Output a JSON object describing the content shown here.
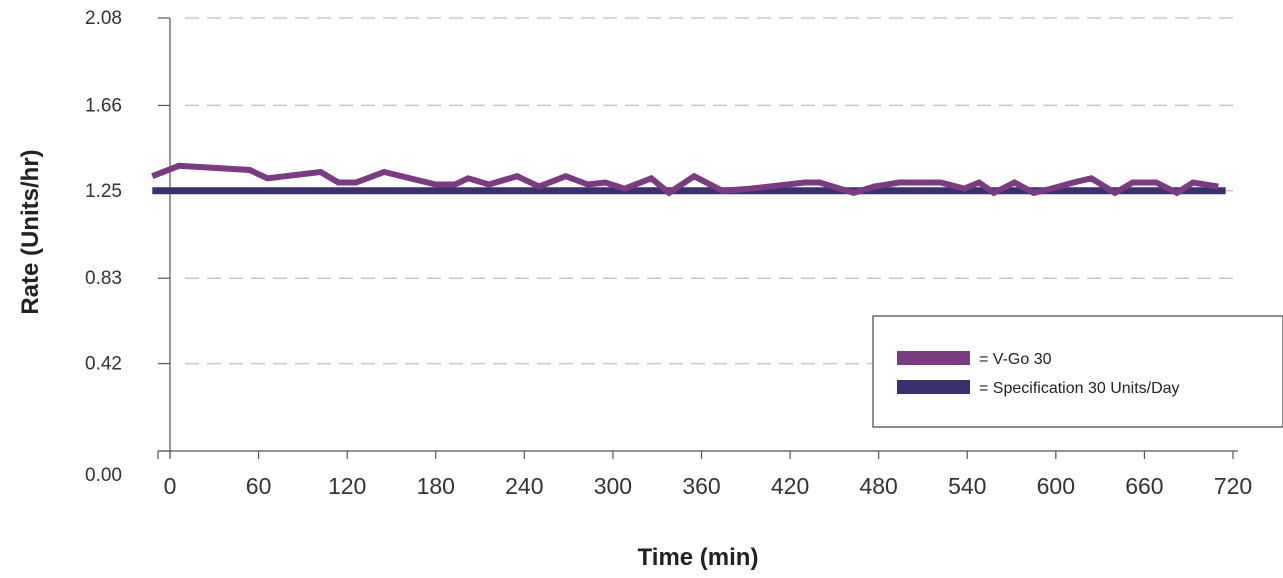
{
  "chart_data": {
    "type": "line",
    "title": "",
    "xlabel": "Time (min)",
    "ylabel": "Rate (Units/hr)",
    "xlim": [
      0,
      720
    ],
    "ylim": [
      0,
      2.08
    ],
    "x_ticks": [
      0,
      60,
      120,
      180,
      240,
      300,
      360,
      420,
      480,
      540,
      600,
      660,
      720
    ],
    "x_tick_labels": [
      "0",
      "60",
      "120",
      "180",
      "240",
      "300",
      "360",
      "420",
      "480",
      "540",
      "600",
      "660",
      "720"
    ],
    "y_ticks": [
      0,
      0.42,
      0.83,
      1.25,
      1.66,
      2.08
    ],
    "y_tick_labels": [
      "0.00",
      "0.42",
      "0.83",
      "1.25",
      "1.66",
      "2.08"
    ],
    "grid": "horizontal dashed",
    "legend_position": "bottom-right",
    "series": [
      {
        "name": "= V-Go 30",
        "color": "#7a3b82",
        "x": [
          -12,
          6,
          54,
          66,
          102,
          114,
          126,
          145,
          180,
          193,
          202,
          216,
          235,
          250,
          268,
          283,
          295,
          308,
          326,
          338,
          355,
          374,
          393,
          430,
          440,
          463,
          477,
          494,
          508,
          522,
          538,
          548,
          558,
          572,
          585,
          597,
          612,
          624,
          640,
          652,
          668,
          682,
          693,
          710
        ],
        "y": [
          1.32,
          1.37,
          1.35,
          1.31,
          1.34,
          1.29,
          1.29,
          1.34,
          1.28,
          1.28,
          1.31,
          1.28,
          1.32,
          1.27,
          1.32,
          1.28,
          1.29,
          1.26,
          1.31,
          1.24,
          1.32,
          1.25,
          1.26,
          1.29,
          1.29,
          1.24,
          1.27,
          1.29,
          1.29,
          1.29,
          1.26,
          1.29,
          1.24,
          1.29,
          1.24,
          1.26,
          1.29,
          1.31,
          1.24,
          1.29,
          1.29,
          1.24,
          1.29,
          1.27
        ]
      },
      {
        "name": "= Specification 30 Units/Day",
        "color": "#3c2f6e",
        "x": [
          -12,
          715
        ],
        "y": [
          1.25,
          1.25
        ]
      }
    ]
  },
  "colors": {
    "grid": "#c8c8c8",
    "axis": "#555555",
    "legend_border": "#444444"
  }
}
